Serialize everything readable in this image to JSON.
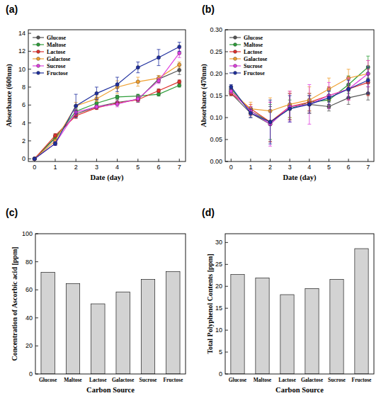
{
  "chart_data": [
    {
      "type": "line",
      "title": "(a)",
      "x_label": "Date (day)",
      "y_label": "Absorbance (600nm)",
      "x": [
        0,
        1,
        2,
        3,
        4,
        5,
        6,
        7
      ],
      "xlim": [
        -0.3,
        7.3
      ],
      "xticks": [
        0,
        1,
        2,
        3,
        4,
        5,
        6,
        7
      ],
      "ylim": [
        -0.3,
        14.4
      ],
      "yticks": [
        0,
        2,
        4,
        6,
        8,
        10,
        12,
        14
      ],
      "grid": false,
      "legend": "upper left",
      "marker": "circle",
      "series": [
        {
          "name": "Glucose",
          "color": "#555555",
          "values": [
            0,
            2.3,
            5.0,
            5.8,
            6.3,
            6.6,
            8.9,
            9.9
          ],
          "errors": [
            0.05,
            0.2,
            0.3,
            0.2,
            0.3,
            0.3,
            0.4,
            0.5
          ]
        },
        {
          "name": "Maltose",
          "color": "#2e9e3a",
          "values": [
            0,
            2.4,
            5.3,
            6.2,
            6.9,
            7.0,
            7.2,
            8.2
          ],
          "errors": [
            0.05,
            0.2,
            0.3,
            0.2,
            0.2,
            0.2,
            0.2,
            0.2
          ]
        },
        {
          "name": "Lactose",
          "color": "#e0302c",
          "values": [
            0,
            2.6,
            4.8,
            5.7,
            6.2,
            6.6,
            7.6,
            8.6
          ],
          "errors": [
            0.05,
            0.2,
            0.3,
            0.2,
            0.2,
            0.2,
            0.2,
            0.2
          ]
        },
        {
          "name": "Galactose",
          "color": "#f0a030",
          "values": [
            0,
            2.0,
            5.9,
            6.7,
            8.0,
            8.6,
            9.0,
            10.5
          ],
          "errors": [
            0.05,
            0.2,
            0.4,
            0.3,
            0.7,
            0.5,
            0.3,
            0.3
          ]
        },
        {
          "name": "Sucrose",
          "color": "#e040e0",
          "values": [
            0,
            1.7,
            5.2,
            5.8,
            6.1,
            6.7,
            8.7,
            11.8
          ],
          "errors": [
            0.05,
            0.2,
            0.3,
            0.2,
            0.3,
            0.3,
            0.3,
            0.5
          ]
        },
        {
          "name": "Fructose",
          "color": "#1f2f9e",
          "values": [
            0,
            1.7,
            5.9,
            7.3,
            8.3,
            10.2,
            11.3,
            12.5
          ],
          "errors": [
            0.05,
            0.2,
            1.3,
            0.7,
            0.8,
            0.6,
            0.9,
            0.5
          ]
        }
      ]
    },
    {
      "type": "line",
      "title": "(b)",
      "x_label": "Date (day)",
      "y_label": "Absorbance (470nm)",
      "x": [
        0,
        1,
        2,
        3,
        4,
        5,
        6,
        7
      ],
      "xlim": [
        -0.3,
        7.3
      ],
      "xticks": [
        0,
        1,
        2,
        3,
        4,
        5,
        6,
        7
      ],
      "ylim": [
        0,
        0.3
      ],
      "yticks": [
        {
          "value": 0,
          "label": "0.00"
        },
        0.05,
        {
          "value": 0.1,
          "label": "0.10"
        },
        0.15,
        {
          "value": 0.2,
          "label": "0.20"
        },
        0.25,
        {
          "value": 0.3,
          "label": "0.30"
        }
      ],
      "grid": false,
      "legend": "upper left",
      "marker": "circle",
      "series": [
        {
          "name": "Glucose",
          "color": "#555555",
          "values": [
            0.155,
            0.11,
            0.085,
            0.125,
            0.13,
            0.125,
            0.145,
            0.155
          ],
          "errors": [
            0.005,
            0.01,
            0.04,
            0.03,
            0.02,
            0.01,
            0.015,
            0.015
          ]
        },
        {
          "name": "Maltose",
          "color": "#2e9e3a",
          "values": [
            0.165,
            0.115,
            0.09,
            0.12,
            0.135,
            0.14,
            0.175,
            0.215
          ],
          "errors": [
            0.005,
            0.01,
            0.04,
            0.02,
            0.02,
            0.02,
            0.02,
            0.025
          ]
        },
        {
          "name": "Lactose",
          "color": "#e0302c",
          "values": [
            0.155,
            0.12,
            0.09,
            0.125,
            0.135,
            0.15,
            0.165,
            0.18
          ],
          "errors": [
            0.005,
            0.01,
            0.045,
            0.03,
            0.02,
            0.02,
            0.025,
            0.03
          ]
        },
        {
          "name": "Galactose",
          "color": "#f0a030",
          "values": [
            0.16,
            0.12,
            0.115,
            0.13,
            0.14,
            0.165,
            0.19,
            0.2
          ],
          "errors": [
            0.005,
            0.015,
            0.03,
            0.03,
            0.03,
            0.025,
            0.02,
            0.03
          ]
        },
        {
          "name": "Sucrose",
          "color": "#e040e0",
          "values": [
            0.16,
            0.115,
            0.085,
            0.125,
            0.13,
            0.15,
            0.165,
            0.2
          ],
          "errors": [
            0.005,
            0.01,
            0.05,
            0.035,
            0.045,
            0.03,
            0.025,
            0.03
          ]
        },
        {
          "name": "Fructose",
          "color": "#1f2f9e",
          "values": [
            0.17,
            0.11,
            0.09,
            0.12,
            0.13,
            0.145,
            0.165,
            0.185
          ],
          "errors": [
            0.005,
            0.01,
            0.05,
            0.03,
            0.02,
            0.015,
            0.02,
            0.03
          ]
        }
      ]
    },
    {
      "type": "bar",
      "title": "(c)",
      "x_label": "Carbon Source",
      "y_label": "Concentration of Ascorbic acid [ppm]",
      "categories": [
        "Glucose",
        "Maltose",
        "Lactose",
        "Galactose",
        "Sucrose",
        "Fructose"
      ],
      "values": [
        72.5,
        64.5,
        50,
        58.5,
        67.5,
        73
      ],
      "color": "#d3d3d3",
      "ylim": [
        0,
        100
      ],
      "yticks": [
        0,
        20,
        40,
        60,
        80,
        100
      ],
      "grid": false
    },
    {
      "type": "bar",
      "title": "(d)",
      "x_label": "Carbon Source",
      "y_label": "Total Polyphenol Contents [ppm]",
      "categories": [
        "Glucose",
        "Maltose",
        "Lactose",
        "Galactose",
        "Sucrose",
        "Fructose"
      ],
      "values": [
        22.7,
        21.9,
        18.1,
        19.5,
        21.6,
        28.6
      ],
      "color": "#d3d3d3",
      "ylim": [
        0,
        32
      ],
      "yticks": [
        0,
        5,
        10,
        15,
        20,
        25,
        30
      ],
      "grid": false
    }
  ]
}
